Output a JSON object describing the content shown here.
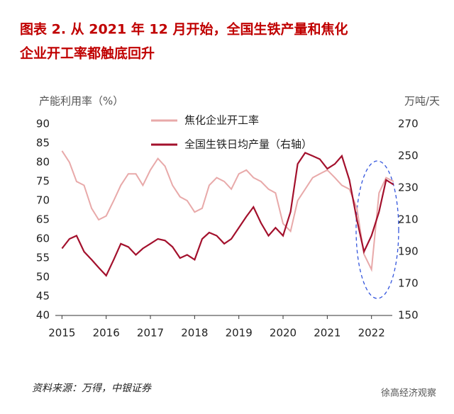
{
  "chart_data": {
    "type": "line",
    "title_line1": "图表 2.  从 2021 年 12 月开始，全国生铁产量和焦化",
    "title_line2": "企业开工率都触底回升",
    "y_label": "产能利用率（%）",
    "y2_label": "万吨/天",
    "source": "资料来源：万得，中银证券",
    "footer": "徐高经济观察",
    "x": [
      2015,
      2015.17,
      2015.33,
      2015.5,
      2015.67,
      2015.83,
      2016,
      2016.17,
      2016.33,
      2016.5,
      2016.67,
      2016.83,
      2017,
      2017.17,
      2017.33,
      2017.5,
      2017.67,
      2017.83,
      2018,
      2018.17,
      2018.33,
      2018.5,
      2018.67,
      2018.83,
      2019,
      2019.17,
      2019.33,
      2019.5,
      2019.67,
      2019.83,
      2020,
      2020.17,
      2020.33,
      2020.5,
      2020.67,
      2020.83,
      2021,
      2021.17,
      2021.33,
      2021.5,
      2021.67,
      2021.83,
      2022,
      2022.17,
      2022.33,
      2022.5
    ],
    "series": [
      {
        "name": "焦化企业开工率",
        "color": "#e8a9a9",
        "axis": "y",
        "values": [
          83,
          80,
          75,
          74,
          68,
          65,
          66,
          70,
          74,
          77,
          77,
          74,
          78,
          81,
          79,
          74,
          71,
          70,
          67,
          68,
          74,
          76,
          75,
          73,
          77,
          78,
          76,
          75,
          73,
          72,
          64,
          62,
          70,
          73,
          76,
          77,
          78,
          76,
          74,
          73,
          68,
          56,
          52,
          72,
          76,
          75
        ]
      },
      {
        "name": "全国生铁日均产量（右轴）",
        "color": "#a3102c",
        "axis": "y2",
        "values": [
          192,
          198,
          200,
          190,
          185,
          180,
          175,
          185,
          195,
          193,
          188,
          192,
          195,
          198,
          197,
          193,
          186,
          188,
          185,
          198,
          202,
          200,
          195,
          198,
          205,
          212,
          218,
          208,
          200,
          205,
          200,
          215,
          245,
          252,
          250,
          248,
          242,
          245,
          250,
          235,
          210,
          190,
          200,
          215,
          235,
          232
        ]
      }
    ],
    "xlim": [
      2014.85,
      2022.47
    ],
    "xticks": [
      2015,
      2016,
      2017,
      2018,
      2019,
      2020,
      2021,
      2022
    ],
    "ylim": [
      40,
      90
    ],
    "yticks": [
      40,
      45,
      50,
      55,
      60,
      65,
      70,
      75,
      80,
      85,
      90
    ],
    "y2lim": [
      150,
      270
    ],
    "y2ticks": [
      150,
      170,
      190,
      210,
      230,
      250,
      270
    ]
  }
}
